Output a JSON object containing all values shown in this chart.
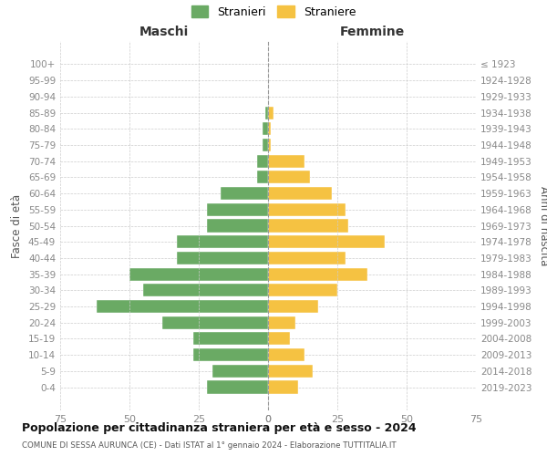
{
  "age_groups": [
    "100+",
    "95-99",
    "90-94",
    "85-89",
    "80-84",
    "75-79",
    "70-74",
    "65-69",
    "60-64",
    "55-59",
    "50-54",
    "45-49",
    "40-44",
    "35-39",
    "30-34",
    "25-29",
    "20-24",
    "15-19",
    "10-14",
    "5-9",
    "0-4"
  ],
  "birth_years": [
    "≤ 1923",
    "1924-1928",
    "1929-1933",
    "1934-1938",
    "1939-1943",
    "1944-1948",
    "1949-1953",
    "1954-1958",
    "1959-1963",
    "1964-1968",
    "1969-1973",
    "1974-1978",
    "1979-1983",
    "1984-1988",
    "1989-1993",
    "1994-1998",
    "1999-2003",
    "2004-2008",
    "2009-2013",
    "2014-2018",
    "2019-2023"
  ],
  "males": [
    0,
    0,
    0,
    1,
    2,
    2,
    4,
    4,
    17,
    22,
    22,
    33,
    33,
    50,
    45,
    62,
    38,
    27,
    27,
    20,
    22
  ],
  "females": [
    0,
    0,
    0,
    2,
    1,
    1,
    13,
    15,
    23,
    28,
    29,
    42,
    28,
    36,
    25,
    18,
    10,
    8,
    13,
    16,
    11
  ],
  "male_color": "#6aaa64",
  "female_color": "#f5c242",
  "background_color": "#ffffff",
  "grid_color": "#cccccc",
  "title": "Popolazione per cittadinanza straniera per età e sesso - 2024",
  "subtitle": "COMUNE DI SESSA AURUNCA (CE) - Dati ISTAT al 1° gennaio 2024 - Elaborazione TUTTITALIA.IT",
  "xlabel_left": "Maschi",
  "xlabel_right": "Femmine",
  "ylabel": "Fasce di età",
  "ylabel_right": "Anni di nascita",
  "legend_male": "Stranieri",
  "legend_female": "Straniere",
  "xlim": 75,
  "tick_color": "#888888"
}
